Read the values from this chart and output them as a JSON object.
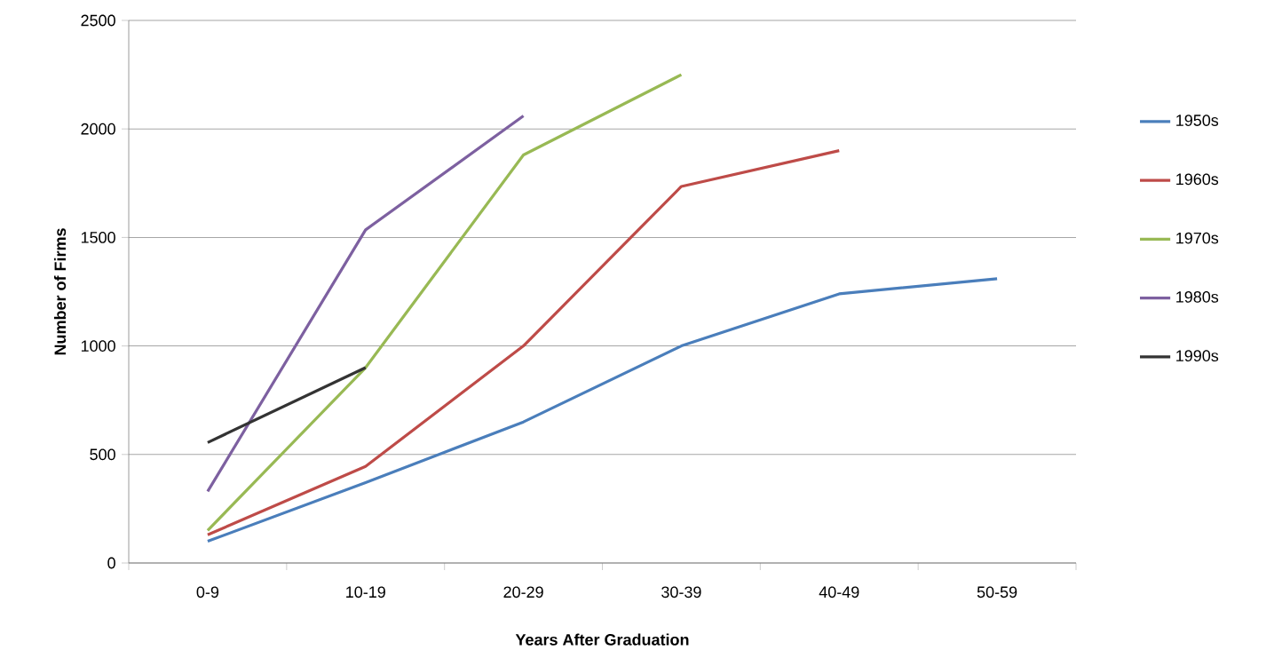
{
  "chart_data": {
    "type": "line",
    "xlabel": "Years After Graduation",
    "ylabel": "Number of Firms",
    "categories": [
      "0-9",
      "10-19",
      "20-29",
      "30-39",
      "40-49",
      "50-59"
    ],
    "series": [
      {
        "name": "1950s",
        "color": "#4a7ebb",
        "values": [
          100,
          370,
          650,
          1000,
          1240,
          1310
        ]
      },
      {
        "name": "1960s",
        "color": "#be4b48",
        "values": [
          130,
          445,
          1000,
          1735,
          1900,
          null
        ]
      },
      {
        "name": "1970s",
        "color": "#98b954",
        "values": [
          150,
          900,
          1880,
          2250,
          null,
          null
        ]
      },
      {
        "name": "1980s",
        "color": "#7d60a0",
        "values": [
          330,
          1535,
          2060,
          null,
          null,
          null
        ]
      },
      {
        "name": "1990s",
        "color": "#333333",
        "values": [
          555,
          900,
          null,
          null,
          null,
          null
        ]
      }
    ],
    "ylim": [
      0,
      2500
    ],
    "yticks": [
      0,
      500,
      1000,
      1500,
      2000,
      2500
    ],
    "grid": "y",
    "legend": "right"
  }
}
